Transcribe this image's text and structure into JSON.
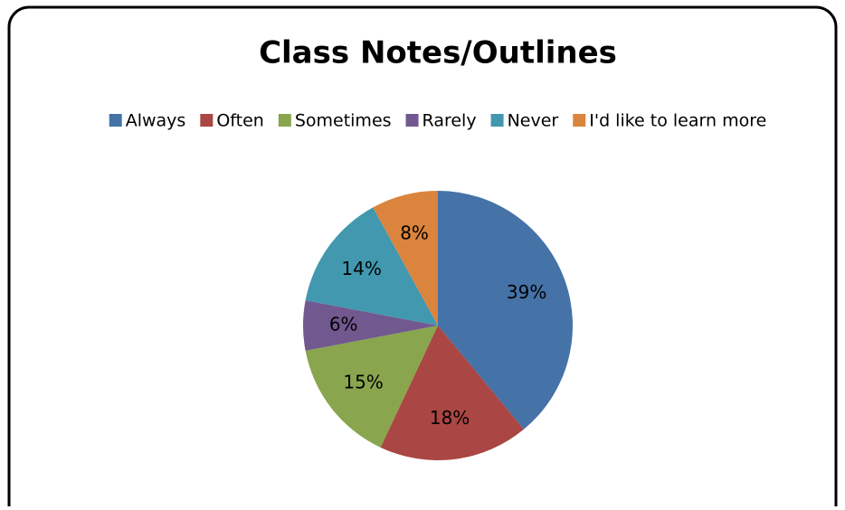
{
  "chart_data": {
    "type": "pie",
    "title": "Class Notes/Outlines",
    "categories": [
      "Always",
      "Often",
      "Sometimes",
      "Rarely",
      "Never",
      "I'd like to learn more"
    ],
    "values": [
      39,
      18,
      15,
      6,
      14,
      8
    ],
    "value_labels": [
      "39%",
      "18%",
      "15%",
      "6%",
      "14%",
      "8%"
    ],
    "colors": [
      "#4572a7",
      "#aa4643",
      "#89a54e",
      "#71588f",
      "#4198af",
      "#db843d"
    ],
    "legend": "top"
  }
}
